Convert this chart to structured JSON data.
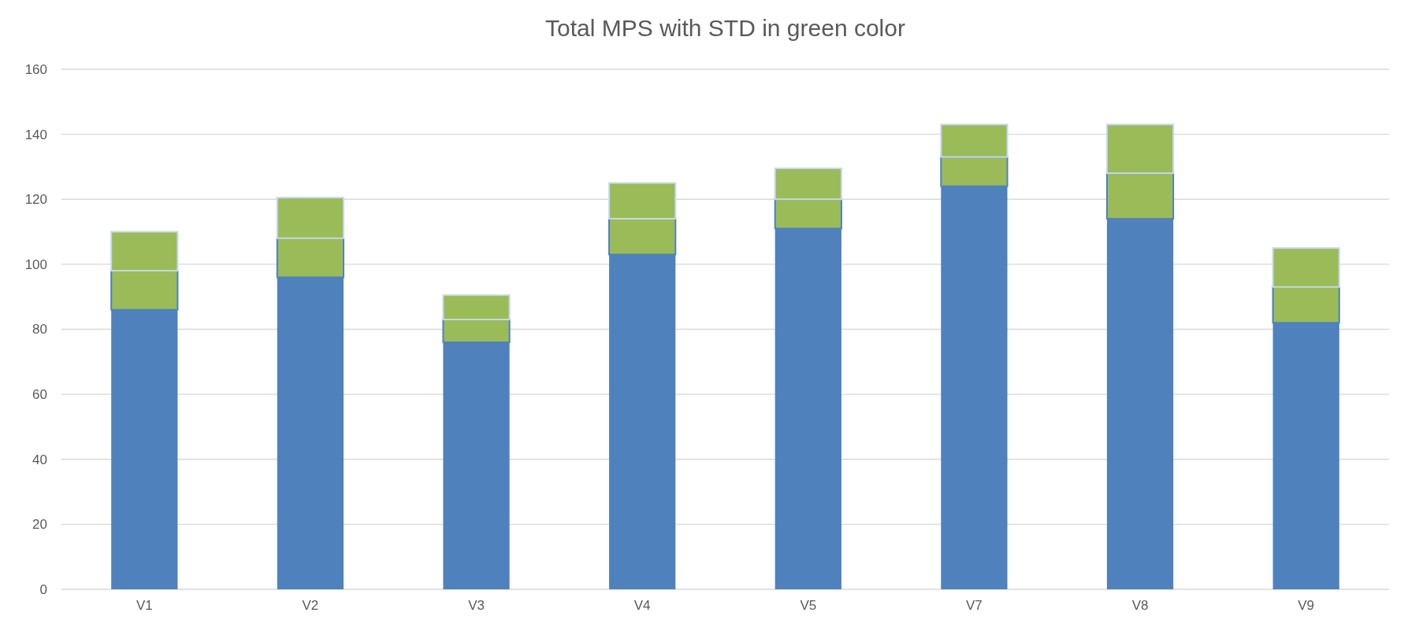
{
  "chart_data": {
    "type": "bar",
    "title": "Total MPS with STD in green color",
    "stacked": true,
    "categories": [
      "V1",
      "V2",
      "V3",
      "V4",
      "V5",
      "V7",
      "V8",
      "V9"
    ],
    "series": [
      {
        "color": "#4f81bd",
        "values": [
          86,
          96,
          76,
          103,
          111,
          124,
          114,
          82
        ]
      },
      {
        "color": "#9bbb59",
        "values": [
          12,
          12,
          7,
          11,
          9,
          9,
          14,
          11
        ]
      },
      {
        "color": "#9bbb59",
        "values": [
          12,
          12.5,
          7.5,
          11,
          9.5,
          10,
          15,
          12
        ]
      }
    ],
    "ylim": [
      0,
      160
    ],
    "yticks": [
      0,
      20,
      40,
      60,
      80,
      100,
      120,
      140,
      160
    ],
    "grid": "y"
  }
}
